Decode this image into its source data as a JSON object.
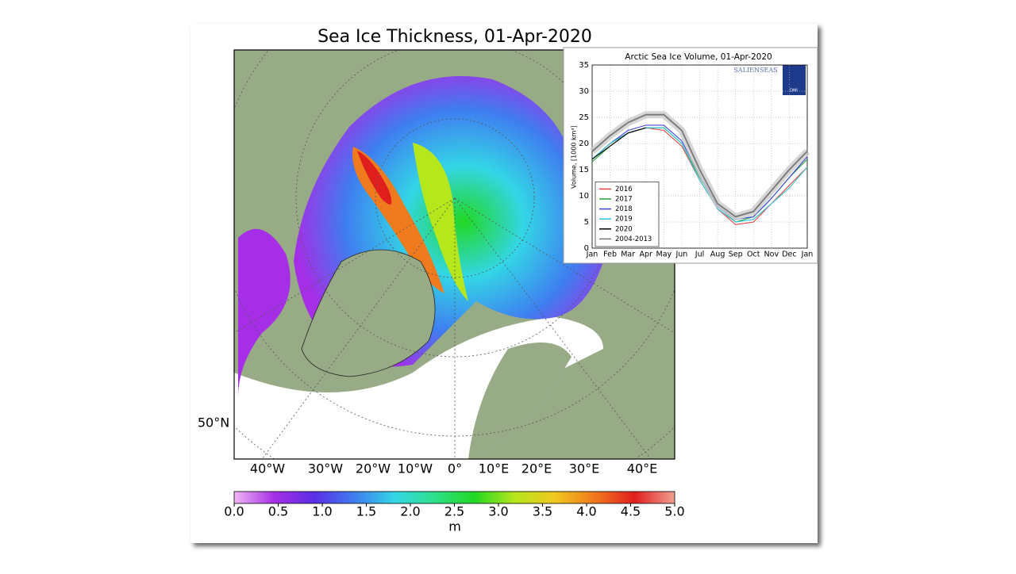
{
  "map": {
    "title": "Sea Ice Thickness, 01-Apr-2020",
    "lat_label": "50°N",
    "lon_labels": [
      "40°W",
      "30°W",
      "20°W",
      "10°W",
      "0°",
      "10°E",
      "20°E",
      "30°E",
      "40°E"
    ],
    "colorbar": {
      "label": "m",
      "lim": [
        0,
        5
      ],
      "ticks": [
        {
          "value": 0,
          "label": "0.0"
        },
        0.5,
        {
          "value": 1,
          "label": "1.0"
        },
        1.5,
        {
          "value": 2,
          "label": "2.0"
        },
        2.5,
        {
          "value": 3,
          "label": "3.0"
        },
        3.5,
        {
          "value": 4,
          "label": "4.0"
        },
        4.5,
        {
          "value": 5,
          "label": "5.0"
        }
      ],
      "colors": [
        "#f2b8f5",
        "#a52ee6",
        "#5a2ee6",
        "#3f7df0",
        "#33d6e6",
        "#2ee08c",
        "#22d822",
        "#b6e61c",
        "#f0c81e",
        "#f07a1e",
        "#e01e1e",
        "#f0a090"
      ]
    }
  },
  "chart_data": {
    "type": "line",
    "title": "Arctic Sea Ice Volume, 01-Apr-2020",
    "y_label": "Volume, [1000 km³]",
    "logo_text": "SALIENSEAS",
    "logo_badge": "DMI",
    "categories": [
      "Jan",
      "Feb",
      "Mar",
      "Apr",
      "May",
      "Jun",
      "Jul",
      "Aug",
      "Sep",
      "Oct",
      "Nov",
      "Dec",
      "Jan"
    ],
    "ylim": [
      0,
      35
    ],
    "yticks": [
      0,
      5,
      10,
      15,
      20,
      25,
      30,
      35
    ],
    "grid": true,
    "legend": "lower left",
    "series": [
      {
        "name": "2016",
        "color": "#e8413c",
        "values": [
          17,
          20,
          22,
          23,
          22.5,
          19.5,
          13,
          7.5,
          4.5,
          5,
          8.5,
          12,
          15.5
        ]
      },
      {
        "name": "2017",
        "color": "#2e9e3e",
        "values": [
          16.5,
          19.5,
          22,
          23,
          23,
          20,
          13.5,
          8,
          5,
          6,
          9.5,
          13.5,
          17
        ]
      },
      {
        "name": "2018",
        "color": "#3b44d8",
        "values": [
          17,
          20,
          22.5,
          23.5,
          23.5,
          20.5,
          14,
          8,
          5.5,
          6,
          9.5,
          13.5,
          17.5
        ]
      },
      {
        "name": "2019",
        "color": "#2ec4d8",
        "values": [
          17,
          20,
          22,
          23,
          23,
          20,
          13,
          7.5,
          5,
          5.5,
          8.5,
          11.5,
          15.5
        ]
      },
      {
        "name": "2020",
        "color": "#000000",
        "values": [
          17,
          19.5,
          22,
          23,
          null,
          null,
          null,
          null,
          null,
          null,
          null,
          null,
          null
        ]
      },
      {
        "name": "2004-2013",
        "color": "#777777",
        "values": [
          18.5,
          21.5,
          24,
          25.5,
          25.5,
          22.5,
          15,
          8.5,
          6,
          7,
          11,
          15,
          18.5
        ]
      }
    ]
  }
}
